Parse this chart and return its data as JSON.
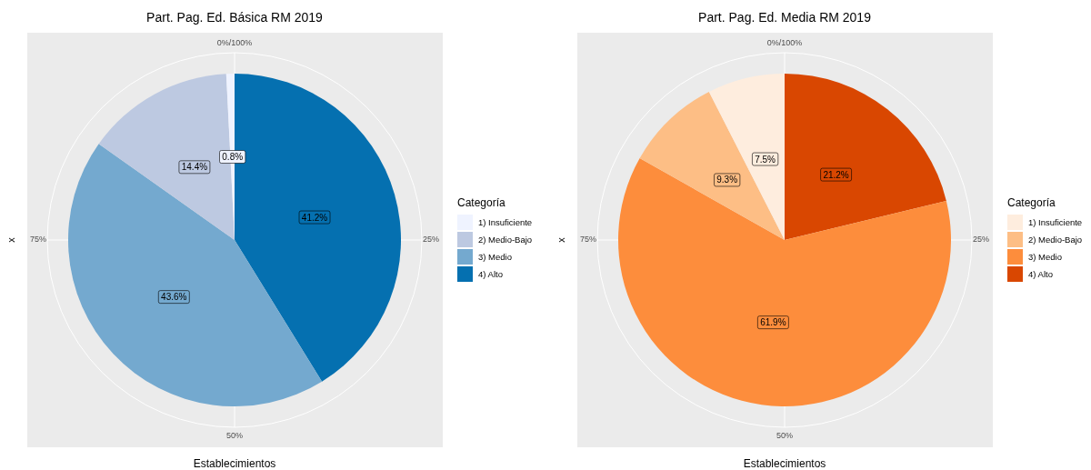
{
  "chart_data": [
    {
      "type": "pie",
      "title": "Part. Pag. Ed. Básica RM 2019",
      "xlabel": "Establecimientos",
      "ylabel": "x",
      "legend_title": "Categoría",
      "legend": "right",
      "grid": true,
      "categories": [
        "1) Insuficiente",
        "2) Medio-Bajo",
        "3) Medio",
        "4) Alto"
      ],
      "values": [
        0.8,
        14.4,
        43.6,
        41.2
      ],
      "value_labels": [
        "0.8%",
        "14.4%",
        "43.6%",
        "41.2%"
      ],
      "colors": [
        "#eff3ff",
        "#bdc9e1",
        "#74a9cf",
        "#0570b0"
      ],
      "annotations": [
        "0%/100%",
        "25%",
        "50%",
        "75%"
      ]
    },
    {
      "type": "pie",
      "title": "Part. Pag. Ed. Media RM 2019",
      "xlabel": "Establecimientos",
      "ylabel": "x",
      "legend_title": "Categoría",
      "legend": "right",
      "grid": true,
      "categories": [
        "1) Insuficiente",
        "2) Medio-Bajo",
        "3) Medio",
        "4) Alto"
      ],
      "values": [
        7.5,
        9.3,
        61.9,
        21.2
      ],
      "value_labels": [
        "7.5%",
        "9.3%",
        "61.9%",
        "21.2%"
      ],
      "colors": [
        "#feedde",
        "#fdbe85",
        "#fd8d3c",
        "#d94701"
      ],
      "annotations": [
        "0%/100%",
        "25%",
        "50%",
        "75%"
      ]
    }
  ]
}
